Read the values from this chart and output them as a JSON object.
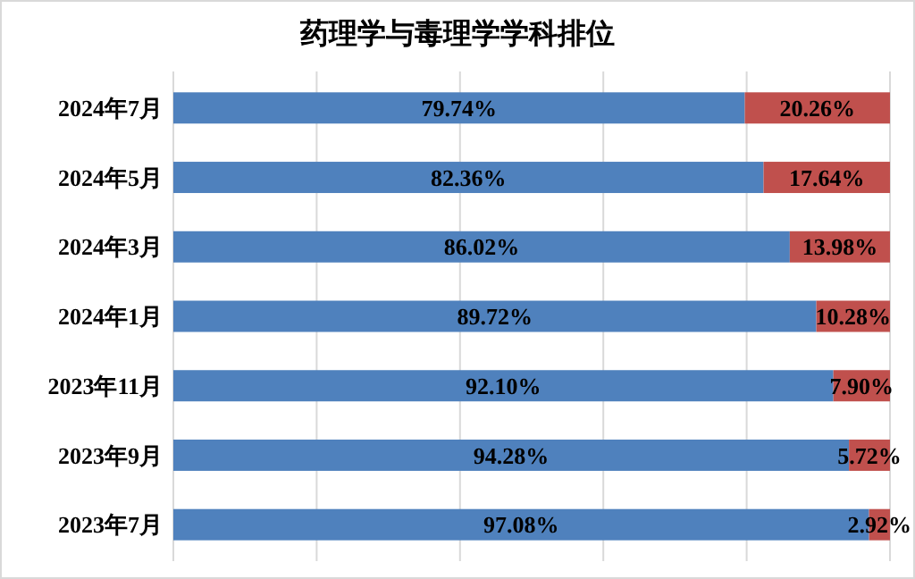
{
  "chart_data": {
    "type": "bar",
    "orientation": "horizontal",
    "stacked": true,
    "title": "药理学与毒理学学科排位",
    "categories": [
      "2024年7月",
      "2024年5月",
      "2024年3月",
      "2024年1月",
      "2023年11月",
      "2023年9月",
      "2023年7月"
    ],
    "series": [
      {
        "color": "#4f81bd",
        "values": [
          79.74,
          82.36,
          86.02,
          89.72,
          92.1,
          94.28,
          97.08
        ],
        "value_labels": [
          "79.74%",
          "82.36%",
          "86.02%",
          "89.72%",
          "92.10%",
          "94.28%",
          "97.08%"
        ]
      },
      {
        "color": "#c0504d",
        "values": [
          20.26,
          17.64,
          13.98,
          10.28,
          7.9,
          5.72,
          2.92
        ],
        "value_labels": [
          "20.26%",
          "17.64%",
          "13.98%",
          "10.28%",
          "7.90%",
          "5.72%",
          "2.92%"
        ]
      }
    ],
    "xlim": [
      0,
      100
    ],
    "xticks": [
      {
        "value": 0,
        "label": null
      },
      {
        "value": 20,
        "label": null
      },
      {
        "value": 40,
        "label": null
      },
      {
        "value": 60,
        "label": null
      },
      {
        "value": 80,
        "label": null
      },
      {
        "value": 100,
        "label": null
      }
    ],
    "grid": "x",
    "tick_labels": "y"
  }
}
